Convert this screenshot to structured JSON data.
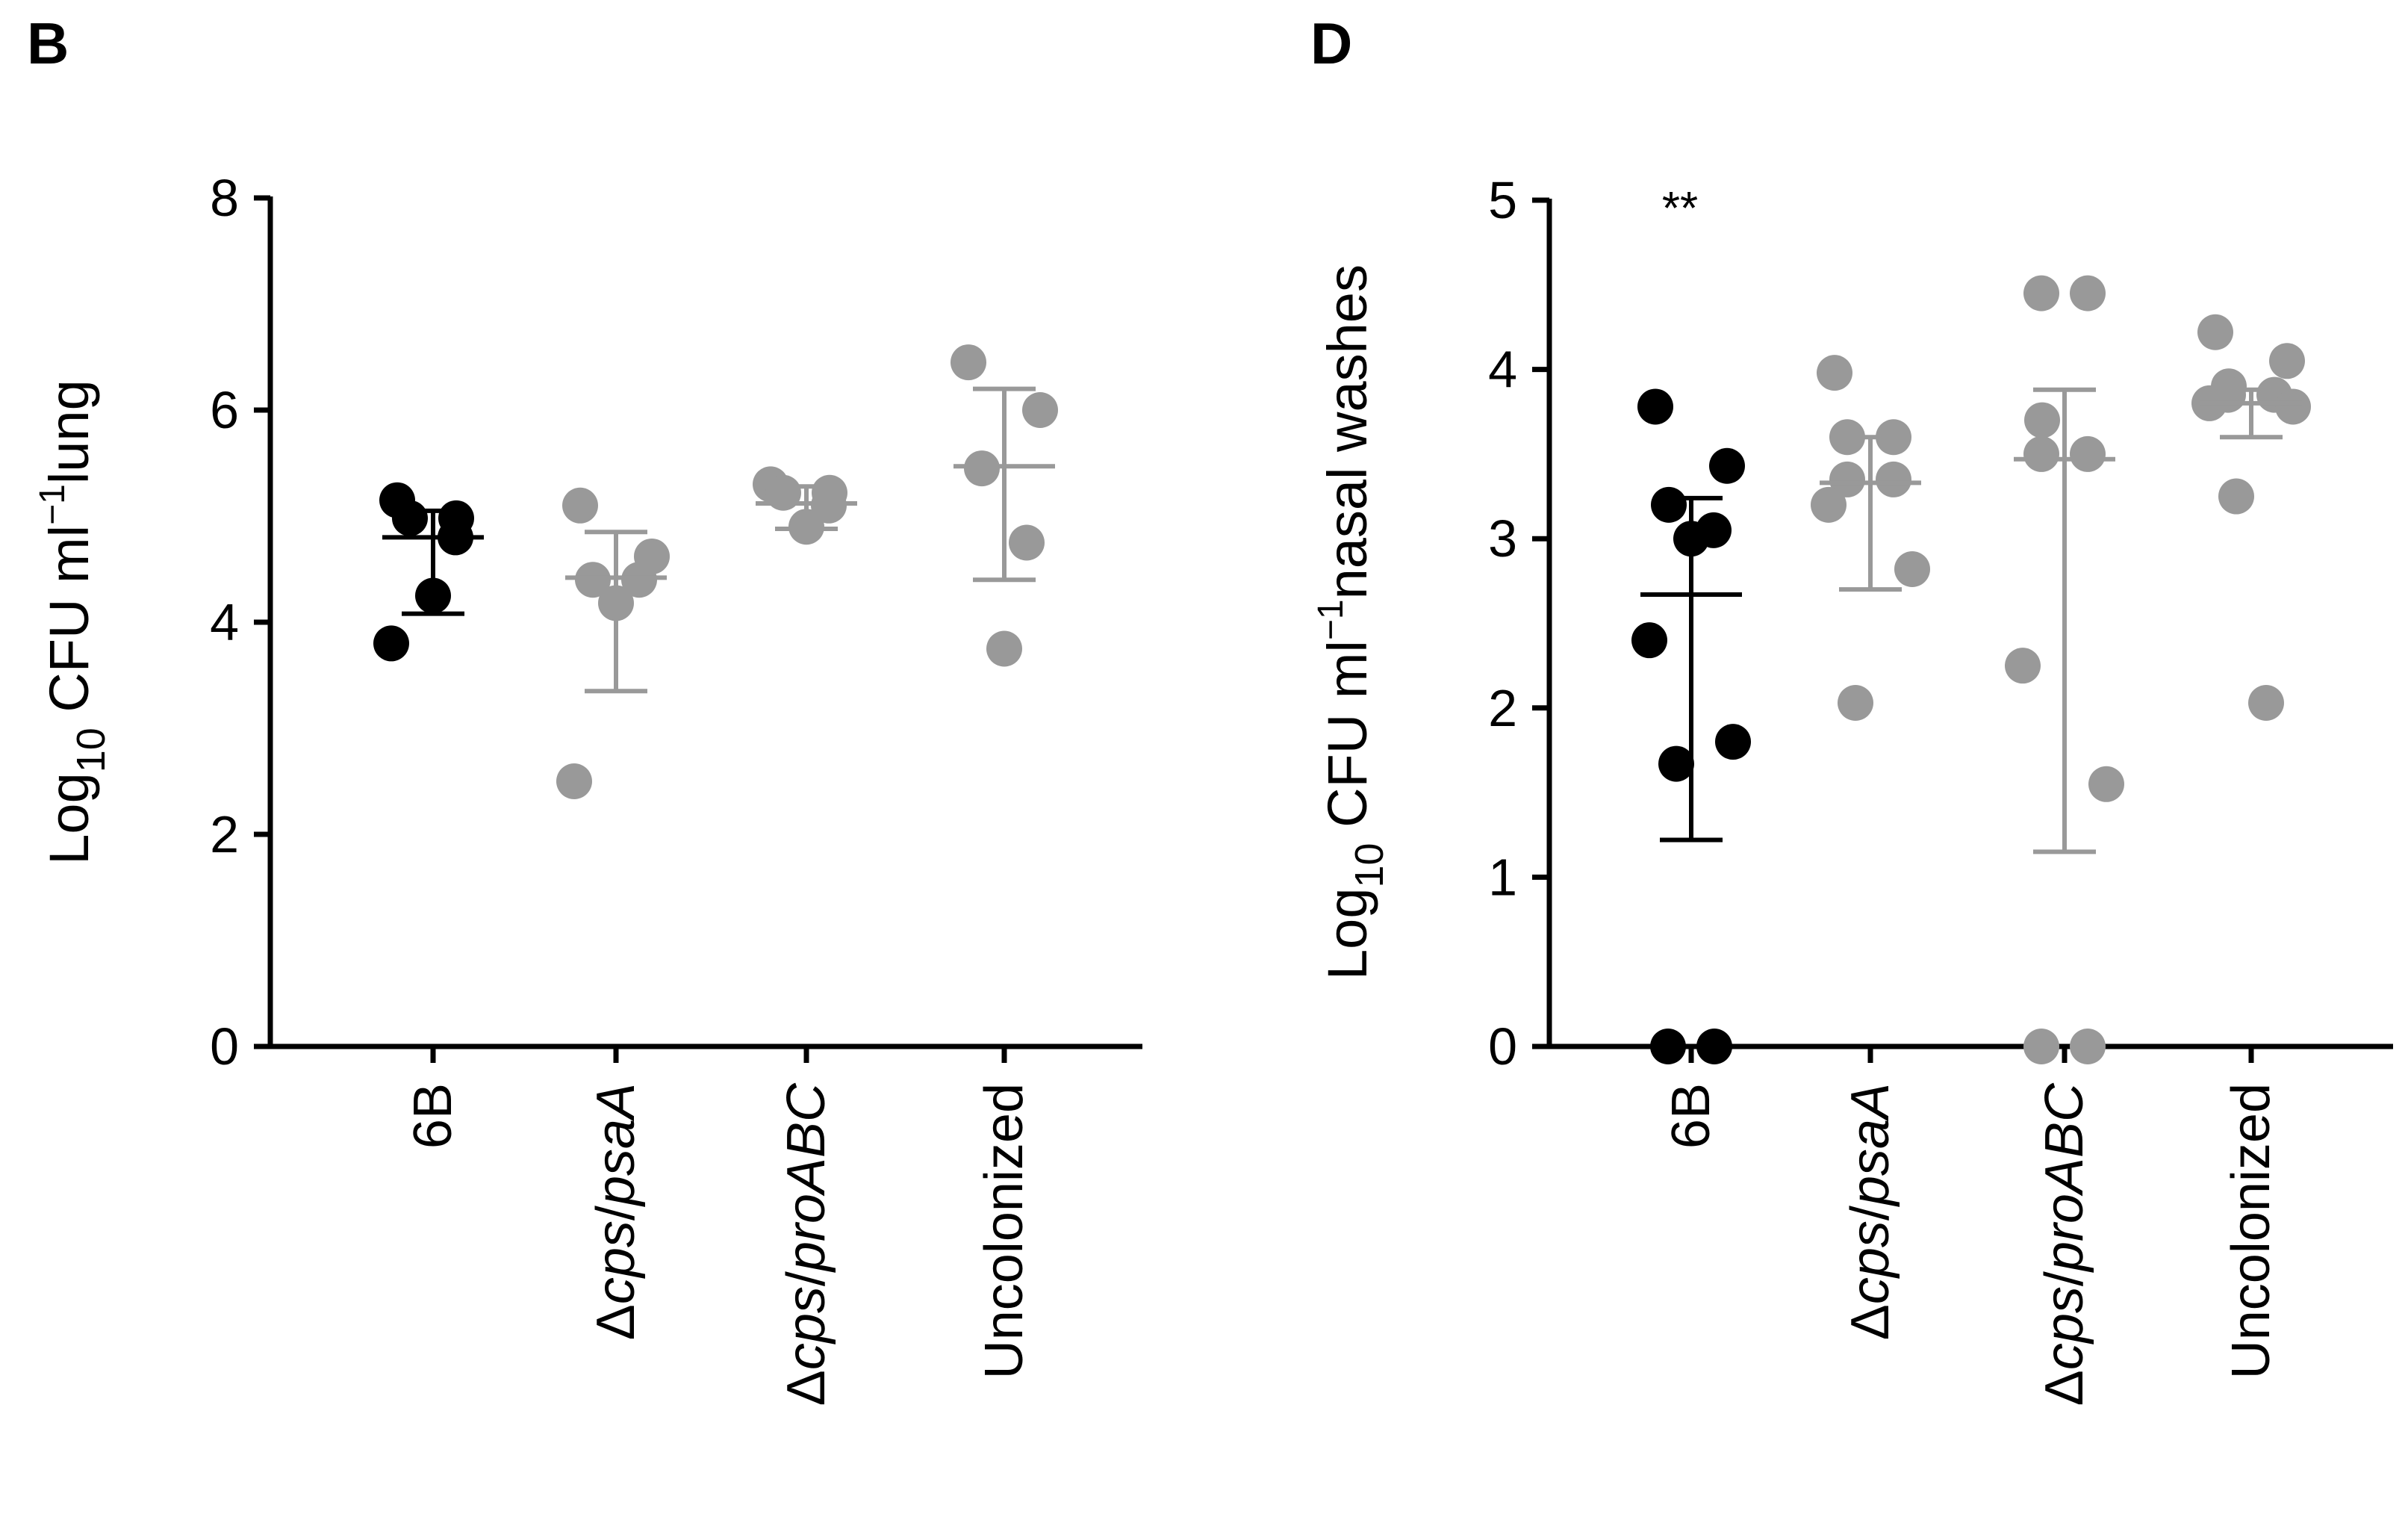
{
  "chart_data": [
    {
      "type": "scatter",
      "panel": "B",
      "ylabel": {
        "prefix": "Log",
        "sub": "10",
        "main": " CFU ml",
        "sup": "−1",
        "suffix": "lung"
      },
      "ylim": [
        0,
        8
      ],
      "yticks": [
        0,
        2,
        4,
        6,
        8
      ],
      "annotation": "",
      "categories": [
        {
          "label": "6B",
          "pre": "",
          "italic": "",
          "mid": "",
          "italic2": "",
          "color": "#000000",
          "points": [
            5.15,
            4.98,
            4.98,
            4.8,
            4.25,
            3.8
          ],
          "mean": 4.8,
          "sd_low": 4.08,
          "sd_high": 5.05
        },
        {
          "label": "Δcps/psaA",
          "pre": "Δ",
          "italic": "cps",
          "mid": "/",
          "italic2": "psaA",
          "color": "#999999",
          "points": [
            5.1,
            4.62,
            4.4,
            4.4,
            4.18,
            2.5
          ],
          "mean": 4.42,
          "sd_low": 3.35,
          "sd_high": 4.85
        },
        {
          "label": "Δcps/proABC",
          "pre": "Δ",
          "italic": "cps",
          "mid": "/",
          "italic2": "proABC",
          "color": "#999999",
          "points": [
            5.3,
            5.22,
            5.22,
            5.1,
            4.9
          ],
          "mean": 5.12,
          "sd_low": 4.88,
          "sd_high": 5.28
        },
        {
          "label": "Uncolonized",
          "pre": "",
          "italic": "",
          "mid": "",
          "italic2": "",
          "color": "#999999",
          "points": [
            6.45,
            6.0,
            5.45,
            4.75,
            3.75
          ],
          "mean": 5.47,
          "sd_low": 4.4,
          "sd_high": 6.2
        }
      ]
    },
    {
      "type": "scatter",
      "panel": "D",
      "ylabel": {
        "prefix": "Log",
        "sub": "10",
        "main": " CFU ml",
        "sup": "−1",
        "suffix": "nasal washes"
      },
      "ylim": [
        0,
        5
      ],
      "yticks": [
        0,
        1,
        2,
        3,
        4,
        5
      ],
      "annotation": "**",
      "categories": [
        {
          "label": "6B",
          "pre": "",
          "italic": "",
          "mid": "",
          "italic2": "",
          "color": "#000000",
          "points": [
            3.78,
            3.43,
            3.2,
            3.05,
            3.0,
            2.4,
            1.8,
            1.67,
            0,
            0
          ],
          "mean": 2.67,
          "sd_low": 1.22,
          "sd_high": 3.24
        },
        {
          "label": "Δcps/psaA",
          "pre": "Δ",
          "italic": "cps",
          "mid": "/",
          "italic2": "psaA",
          "color": "#999999",
          "points": [
            3.98,
            3.6,
            3.6,
            3.35,
            3.35,
            3.2,
            2.82,
            2.03
          ],
          "mean": 3.33,
          "sd_low": 2.7,
          "sd_high": 3.6
        },
        {
          "label": "Δcps/proABC",
          "pre": "Δ",
          "italic": "cps",
          "mid": "/",
          "italic2": "proABC",
          "color": "#999999",
          "points": [
            4.45,
            4.45,
            3.7,
            3.5,
            3.5,
            2.25,
            1.55,
            0,
            0
          ],
          "mean": 3.47,
          "sd_low": 1.15,
          "sd_high": 3.88
        },
        {
          "label": "Uncolonized",
          "pre": "",
          "italic": "",
          "mid": "",
          "italic2": "",
          "color": "#999999",
          "points": [
            4.22,
            4.05,
            3.9,
            3.85,
            3.85,
            3.8,
            3.78,
            3.25,
            2.03
          ],
          "mean": 3.8,
          "sd_low": 3.6,
          "sd_high": 3.88
        }
      ]
    }
  ]
}
